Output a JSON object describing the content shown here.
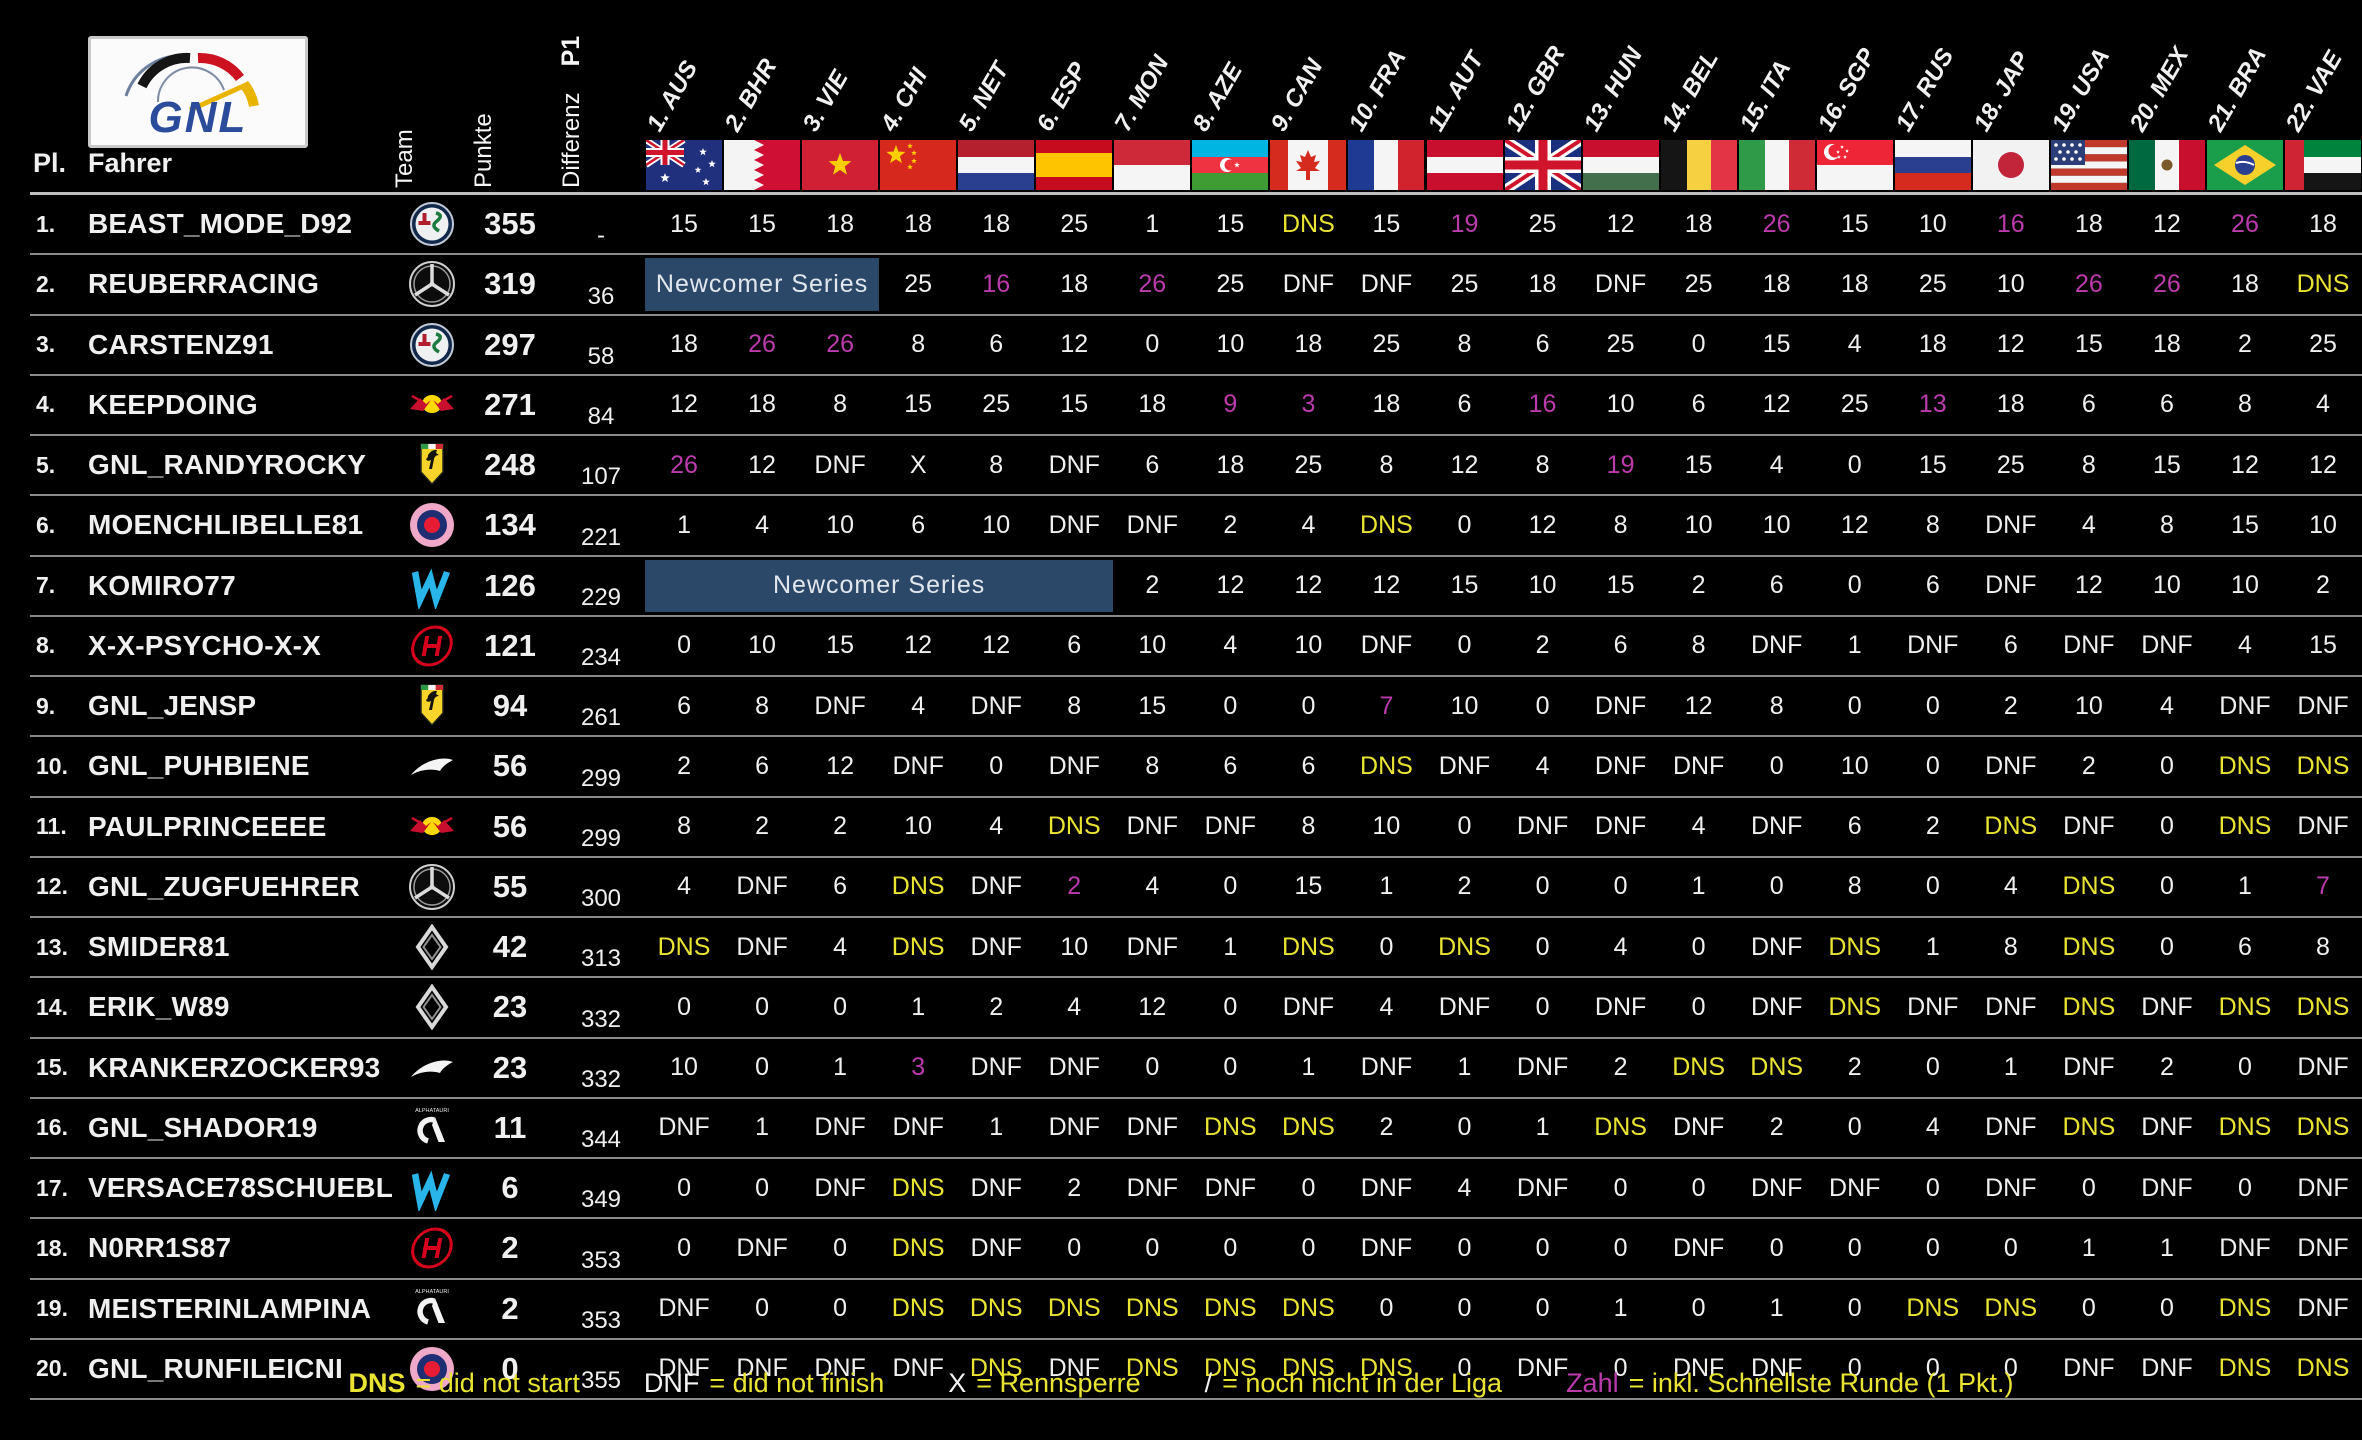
{
  "header": {
    "logo_text": "GNL",
    "pl_label": "Pl.",
    "fahrer_label": "Fahrer",
    "team_label": "Team",
    "punkte_label": "Punkte",
    "differenz_label": "Differenz",
    "p1_label": "P1"
  },
  "colors": {
    "dns_yellow": "#e8e431",
    "fastest_lap_magenta": "#bb3bad",
    "newcomer_box_blue": "#2c4869",
    "logo_blue": "#2b4b9b"
  },
  "races": [
    {
      "code": "1. AUS",
      "flag": "aus"
    },
    {
      "code": "2. BHR",
      "flag": "bhr"
    },
    {
      "code": "3. VIE",
      "flag": "vie"
    },
    {
      "code": "4. CHI",
      "flag": "chi"
    },
    {
      "code": "5. NET",
      "flag": "net"
    },
    {
      "code": "6. ESP",
      "flag": "esp"
    },
    {
      "code": "7. MON",
      "flag": "mon"
    },
    {
      "code": "8. AZE",
      "flag": "aze"
    },
    {
      "code": "9. CAN",
      "flag": "can"
    },
    {
      "code": "10. FRA",
      "flag": "fra"
    },
    {
      "code": "11. AUT",
      "flag": "aut"
    },
    {
      "code": "12. GBR",
      "flag": "gbr"
    },
    {
      "code": "13. HUN",
      "flag": "hun"
    },
    {
      "code": "14. BEL",
      "flag": "bel"
    },
    {
      "code": "15. ITA",
      "flag": "ita"
    },
    {
      "code": "16. SGP",
      "flag": "sgp"
    },
    {
      "code": "17. RUS",
      "flag": "rus"
    },
    {
      "code": "18. JAP",
      "flag": "jap"
    },
    {
      "code": "19. USA",
      "flag": "usa"
    },
    {
      "code": "20. MEX",
      "flag": "mex"
    },
    {
      "code": "21. BRA",
      "flag": "bra"
    },
    {
      "code": "22. VAE",
      "flag": "vae"
    }
  ],
  "teams": {
    "alphatauri_logo_text": "ALPHATAURI"
  },
  "rows": [
    {
      "pl": "1.",
      "driver": "BEAST_MODE_D92",
      "team": "alfa-romeo",
      "punkte": "355",
      "diff": "-",
      "results": [
        "15",
        "15",
        "18",
        "18",
        "18",
        "25",
        "1",
        "15",
        "DNS",
        "15",
        "19",
        "25",
        "12",
        "18",
        "26",
        "15",
        "10",
        "16",
        "18",
        "12",
        "26",
        "18"
      ],
      "fastest": [
        11,
        15,
        18,
        21
      ]
    },
    {
      "pl": "2.",
      "driver": "REUBERRACING",
      "team": "mercedes",
      "punkte": "319",
      "diff": "36",
      "span": {
        "cols": 3,
        "label": "Newcomer Series"
      },
      "results": [
        "25",
        "16",
        "18",
        "26",
        "25",
        "DNF",
        "DNF",
        "25",
        "18",
        "DNF",
        "25",
        "18",
        "18",
        "25",
        "10",
        "26",
        "26",
        "18",
        "DNS"
      ],
      "fastest": [
        5,
        7,
        19,
        20
      ]
    },
    {
      "pl": "3.",
      "driver": "CARSTENZ91",
      "team": "alfa-romeo",
      "punkte": "297",
      "diff": "58",
      "results": [
        "18",
        "26",
        "26",
        "8",
        "6",
        "12",
        "0",
        "10",
        "18",
        "25",
        "8",
        "6",
        "25",
        "0",
        "15",
        "4",
        "18",
        "12",
        "15",
        "18",
        "2",
        "25"
      ],
      "fastest": [
        2,
        3
      ]
    },
    {
      "pl": "4.",
      "driver": "KEEPDOING",
      "team": "red-bull",
      "punkte": "271",
      "diff": "84",
      "results": [
        "12",
        "18",
        "8",
        "15",
        "25",
        "15",
        "18",
        "9",
        "3",
        "18",
        "6",
        "16",
        "10",
        "6",
        "12",
        "25",
        "13",
        "18",
        "6",
        "6",
        "8",
        "4"
      ],
      "fastest": [
        8,
        9,
        12,
        17
      ]
    },
    {
      "pl": "5.",
      "driver": "GNL_RANDYROCKY",
      "team": "ferrari",
      "punkte": "248",
      "diff": "107",
      "results": [
        "26",
        "12",
        "DNF",
        "X",
        "8",
        "DNF",
        "6",
        "18",
        "25",
        "8",
        "12",
        "8",
        "19",
        "15",
        "4",
        "0",
        "15",
        "25",
        "8",
        "15",
        "12",
        "12"
      ],
      "fastest": [
        1,
        13
      ]
    },
    {
      "pl": "6.",
      "driver": "MOENCHLIBELLE81",
      "team": "roundel",
      "punkte": "134",
      "diff": "221",
      "results": [
        "1",
        "4",
        "10",
        "6",
        "10",
        "DNF",
        "DNF",
        "2",
        "4",
        "DNS",
        "0",
        "12",
        "8",
        "10",
        "10",
        "12",
        "8",
        "DNF",
        "4",
        "8",
        "15",
        "10"
      ],
      "fastest": []
    },
    {
      "pl": "7.",
      "driver": "KOMIRO77",
      "team": "williams",
      "punkte": "126",
      "diff": "229",
      "span": {
        "cols": 6,
        "label": "Newcomer Series"
      },
      "results": [
        "2",
        "12",
        "12",
        "12",
        "15",
        "10",
        "15",
        "2",
        "6",
        "0",
        "6",
        "DNF",
        "12",
        "10",
        "10",
        "2"
      ],
      "fastest": []
    },
    {
      "pl": "8.",
      "driver": "X-X-PSYCHO-X-X",
      "team": "haas",
      "punkte": "121",
      "diff": "234",
      "results": [
        "0",
        "10",
        "15",
        "12",
        "12",
        "6",
        "10",
        "4",
        "10",
        "DNF",
        "0",
        "2",
        "6",
        "8",
        "DNF",
        "1",
        "DNF",
        "6",
        "DNF",
        "DNF",
        "4",
        "15"
      ],
      "fastest": []
    },
    {
      "pl": "9.",
      "driver": "GNL_JENSP",
      "team": "ferrari",
      "punkte": "94",
      "diff": "261",
      "results": [
        "6",
        "8",
        "DNF",
        "4",
        "DNF",
        "8",
        "15",
        "0",
        "0",
        "7",
        "10",
        "0",
        "DNF",
        "12",
        "8",
        "0",
        "0",
        "2",
        "10",
        "4",
        "DNF",
        "DNF"
      ],
      "fastest": [
        10
      ]
    },
    {
      "pl": "10.",
      "driver": "GNL_PUHBIENE",
      "team": "mclaren",
      "punkte": "56",
      "diff": "299",
      "results": [
        "2",
        "6",
        "12",
        "DNF",
        "0",
        "DNF",
        "8",
        "6",
        "6",
        "DNS",
        "DNF",
        "4",
        "DNF",
        "DNF",
        "0",
        "10",
        "0",
        "DNF",
        "2",
        "0",
        "DNS",
        "DNS"
      ],
      "fastest": []
    },
    {
      "pl": "11.",
      "driver": "PAULPRINCEEEE",
      "team": "red-bull",
      "punkte": "56",
      "diff": "299",
      "results": [
        "8",
        "2",
        "2",
        "10",
        "4",
        "DNS",
        "DNF",
        "DNF",
        "8",
        "10",
        "0",
        "DNF",
        "DNF",
        "4",
        "DNF",
        "6",
        "2",
        "DNS",
        "DNF",
        "0",
        "DNS",
        "DNF"
      ],
      "fastest": []
    },
    {
      "pl": "12.",
      "driver": "GNL_ZUGFUEHRER",
      "team": "mercedes",
      "punkte": "55",
      "diff": "300",
      "results": [
        "4",
        "DNF",
        "6",
        "DNS",
        "DNF",
        "2",
        "4",
        "0",
        "15",
        "1",
        "2",
        "0",
        "0",
        "1",
        "0",
        "8",
        "0",
        "4",
        "DNS",
        "0",
        "1",
        "7"
      ],
      "fastest": [
        6,
        22
      ]
    },
    {
      "pl": "13.",
      "driver": "SMIDER81",
      "team": "renault",
      "punkte": "42",
      "diff": "313",
      "results": [
        "DNS",
        "DNF",
        "4",
        "DNS",
        "DNF",
        "10",
        "DNF",
        "1",
        "DNS",
        "0",
        "DNS",
        "0",
        "4",
        "0",
        "DNF",
        "DNS",
        "1",
        "8",
        "DNS",
        "0",
        "6",
        "8"
      ],
      "fastest": []
    },
    {
      "pl": "14.",
      "driver": "ERIK_W89",
      "team": "renault",
      "punkte": "23",
      "diff": "332",
      "results": [
        "0",
        "0",
        "0",
        "1",
        "2",
        "4",
        "12",
        "0",
        "DNF",
        "4",
        "DNF",
        "0",
        "DNF",
        "0",
        "DNF",
        "DNS",
        "DNF",
        "DNF",
        "DNS",
        "DNF",
        "DNS",
        "DNS"
      ],
      "fastest": []
    },
    {
      "pl": "15.",
      "driver": "KRANKERZOCKER93",
      "team": "mclaren",
      "punkte": "23",
      "diff": "332",
      "results": [
        "10",
        "0",
        "1",
        "3",
        "DNF",
        "DNF",
        "0",
        "0",
        "1",
        "DNF",
        "1",
        "DNF",
        "2",
        "DNS",
        "DNS",
        "2",
        "0",
        "1",
        "DNF",
        "2",
        "0",
        "DNF"
      ],
      "fastest": [
        4
      ]
    },
    {
      "pl": "16.",
      "driver": "GNL_SHADOR19",
      "team": "alphatauri",
      "punkte": "11",
      "diff": "344",
      "results": [
        "DNF",
        "1",
        "DNF",
        "DNF",
        "1",
        "DNF",
        "DNF",
        "DNS",
        "DNS",
        "2",
        "0",
        "1",
        "DNS",
        "DNF",
        "2",
        "0",
        "4",
        "DNF",
        "DNS",
        "DNF",
        "DNS",
        "DNS"
      ],
      "fastest": []
    },
    {
      "pl": "17.",
      "driver": "VERSACE78SCHUEBL",
      "team": "williams",
      "punkte": "6",
      "diff": "349",
      "results": [
        "0",
        "0",
        "DNF",
        "DNS",
        "DNF",
        "2",
        "DNF",
        "DNF",
        "0",
        "DNF",
        "4",
        "DNF",
        "0",
        "0",
        "DNF",
        "DNF",
        "0",
        "DNF",
        "0",
        "DNF",
        "0",
        "DNF"
      ],
      "fastest": []
    },
    {
      "pl": "18.",
      "driver": "N0RR1S87",
      "team": "haas",
      "punkte": "2",
      "diff": "353",
      "results": [
        "0",
        "DNF",
        "0",
        "DNS",
        "DNF",
        "0",
        "0",
        "0",
        "0",
        "DNF",
        "0",
        "0",
        "0",
        "DNF",
        "0",
        "0",
        "0",
        "0",
        "1",
        "1",
        "DNF",
        "DNF"
      ],
      "fastest": []
    },
    {
      "pl": "19.",
      "driver": "MEISTERINLAMPINA",
      "team": "alphatauri",
      "punkte": "2",
      "diff": "353",
      "results": [
        "DNF",
        "0",
        "0",
        "DNS",
        "DNS",
        "DNS",
        "DNS",
        "DNS",
        "DNS",
        "0",
        "0",
        "0",
        "1",
        "0",
        "1",
        "0",
        "DNS",
        "DNS",
        "0",
        "0",
        "DNS",
        "DNF"
      ],
      "fastest": []
    },
    {
      "pl": "20.",
      "driver": "GNL_RUNFILEICNI",
      "team": "roundel",
      "punkte": "0",
      "diff": "355",
      "results": [
        "DNF",
        "DNF",
        "DNF",
        "DNF",
        "DNS",
        "DNF",
        "DNS",
        "DNS",
        "DNS",
        "DNS",
        "0",
        "DNF",
        "0",
        "DNF",
        "DNF",
        "0",
        "0",
        "0",
        "DNF",
        "DNF",
        "DNS",
        "DNS"
      ],
      "fastest": []
    }
  ],
  "legend": [
    {
      "key": "DNS",
      "style": "yellow",
      "text": "= did not start"
    },
    {
      "key": "DNF",
      "style": "white",
      "text": "= did not finish"
    },
    {
      "key": "X",
      "style": "white",
      "text": "= Rennsperre"
    },
    {
      "key": "/",
      "style": "white",
      "text": "= noch nicht in der Liga"
    },
    {
      "key": "Zahl",
      "style": "magenta",
      "text": "= inkl. Schnellste Runde (1 Pkt.)"
    }
  ]
}
